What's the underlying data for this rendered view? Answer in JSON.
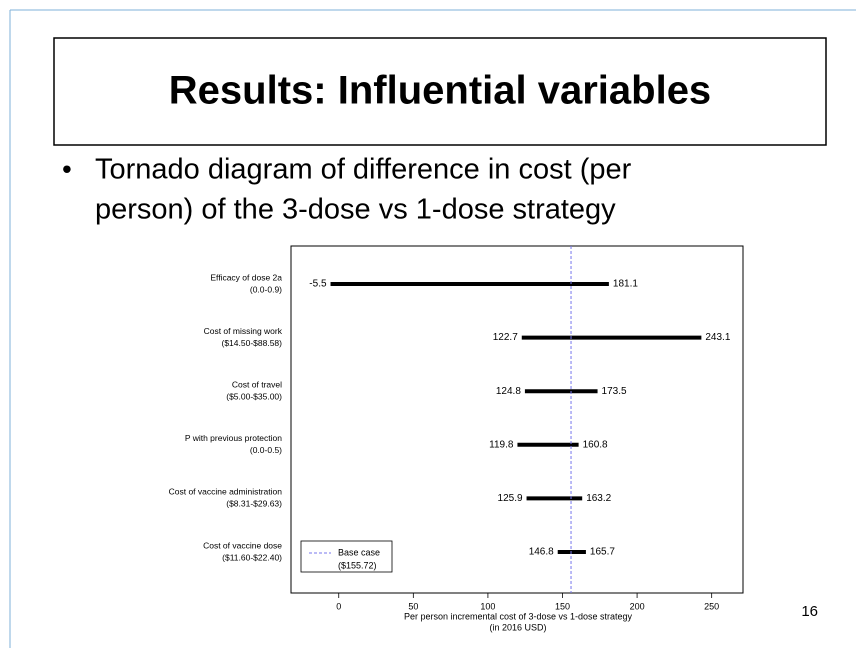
{
  "slide": {
    "title": "Results: Influential variables",
    "bullet_lines": [
      "Tornado diagram of difference in cost (per",
      "person) of the 3-dose vs 1-dose strategy"
    ],
    "page_number": "16"
  },
  "chart_data": {
    "type": "tornado",
    "categories": [
      "Efficacy of dose 2a",
      "Cost of missing work",
      "Cost of travel",
      "P with previous protection",
      "Cost of vaccine administration",
      "Cost of vaccine dose"
    ],
    "category_ranges": [
      "(0.0-0.9)",
      "($14.50-$88.58)",
      "($5.00-$35.00)",
      "(0.0-0.5)",
      "($8.31-$29.63)",
      "($11.60-$22.40)"
    ],
    "low": [
      -5.5,
      122.7,
      124.8,
      119.8,
      125.9,
      146.8
    ],
    "high": [
      181.1,
      243.1,
      173.5,
      160.8,
      163.2,
      165.7
    ],
    "color": "#000000",
    "base_case": 155.72,
    "base_case_color": "#7777ee",
    "legend": {
      "labels": [
        "Base case",
        "($155.72)"
      ],
      "position": "lower left"
    },
    "xlabel": [
      "Per person incremental cost of 3-dose vs 1-dose strategy",
      "(in 2016 USD)"
    ],
    "xlim": [
      -32,
      271
    ],
    "xticks": [
      0,
      50,
      100,
      150,
      200,
      250
    ]
  }
}
